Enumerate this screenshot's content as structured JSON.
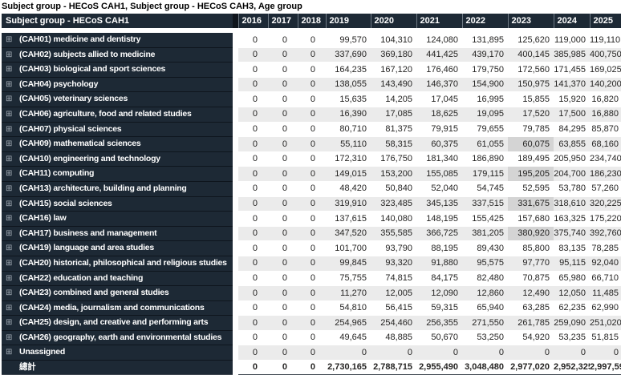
{
  "title": "Subject group - HECoS CAH1, Subject group - HECoS CAH3, Age group",
  "icons": {
    "expand": "⊞"
  },
  "colors": {
    "header_bg": "#1d2935",
    "stripe": "#ebebeb",
    "highlight": "#d4d4d4"
  },
  "table": {
    "row_header_label": "Subject group - HECoS CAH1",
    "years": [
      "2016",
      "2017",
      "2018",
      "2019",
      "2020",
      "2021",
      "2022",
      "2023",
      "2024",
      "2025"
    ],
    "rows": [
      {
        "label": "(CAH01) medicine and dentistry",
        "expandable": true,
        "total": false,
        "values": [
          "0",
          "0",
          "0",
          "99,570",
          "104,310",
          "124,080",
          "131,895",
          "125,620",
          "119,000",
          "119,110"
        ]
      },
      {
        "label": "(CAH02) subjects allied to medicine",
        "expandable": true,
        "total": false,
        "values": [
          "0",
          "0",
          "0",
          "337,690",
          "369,180",
          "441,425",
          "439,170",
          "400,145",
          "385,985",
          "400,750"
        ]
      },
      {
        "label": "(CAH03) biological and sport sciences",
        "expandable": true,
        "total": false,
        "values": [
          "0",
          "0",
          "0",
          "164,235",
          "167,120",
          "176,460",
          "179,750",
          "172,560",
          "171,455",
          "169,025"
        ]
      },
      {
        "label": "(CAH04) psychology",
        "expandable": true,
        "total": false,
        "values": [
          "0",
          "0",
          "0",
          "138,055",
          "143,490",
          "146,370",
          "154,900",
          "150,975",
          "141,370",
          "140,200"
        ]
      },
      {
        "label": "(CAH05) veterinary sciences",
        "expandable": true,
        "total": false,
        "values": [
          "0",
          "0",
          "0",
          "15,635",
          "14,205",
          "17,045",
          "16,995",
          "15,855",
          "15,920",
          "16,820"
        ]
      },
      {
        "label": "(CAH06) agriculture, food and related studies",
        "expandable": true,
        "total": false,
        "values": [
          "0",
          "0",
          "0",
          "16,390",
          "17,085",
          "18,625",
          "19,095",
          "17,520",
          "17,500",
          "16,880"
        ]
      },
      {
        "label": "(CAH07) physical sciences",
        "expandable": true,
        "total": false,
        "values": [
          "0",
          "0",
          "0",
          "80,710",
          "81,375",
          "79,915",
          "79,655",
          "79,785",
          "84,295",
          "85,870"
        ]
      },
      {
        "label": "(CAH09) mathematical sciences",
        "expandable": true,
        "total": false,
        "values": [
          "0",
          "0",
          "0",
          "55,110",
          "58,315",
          "60,375",
          "61,055",
          "60,075",
          "63,855",
          "68,160"
        ]
      },
      {
        "label": "(CAH10) engineering and technology",
        "expandable": true,
        "total": false,
        "values": [
          "0",
          "0",
          "0",
          "172,310",
          "176,750",
          "181,340",
          "186,890",
          "189,495",
          "205,950",
          "234,740"
        ]
      },
      {
        "label": "(CAH11) computing",
        "expandable": true,
        "total": false,
        "values": [
          "0",
          "0",
          "0",
          "149,015",
          "153,200",
          "155,085",
          "179,115",
          "195,205",
          "204,700",
          "186,230"
        ]
      },
      {
        "label": "(CAH13) architecture, building and planning",
        "expandable": true,
        "total": false,
        "values": [
          "0",
          "0",
          "0",
          "48,420",
          "50,840",
          "52,040",
          "54,745",
          "52,595",
          "53,780",
          "57,260"
        ]
      },
      {
        "label": "(CAH15) social sciences",
        "expandable": true,
        "total": false,
        "values": [
          "0",
          "0",
          "0",
          "319,910",
          "323,485",
          "345,135",
          "337,515",
          "331,675",
          "318,610",
          "320,225"
        ]
      },
      {
        "label": "(CAH16) law",
        "expandable": true,
        "total": false,
        "values": [
          "0",
          "0",
          "0",
          "137,615",
          "140,080",
          "148,195",
          "155,425",
          "157,680",
          "163,325",
          "175,220"
        ]
      },
      {
        "label": "(CAH17) business and management",
        "expandable": true,
        "total": false,
        "values": [
          "0",
          "0",
          "0",
          "347,520",
          "355,585",
          "366,725",
          "381,205",
          "380,920",
          "375,740",
          "392,760"
        ]
      },
      {
        "label": "(CAH19) language and area studies",
        "expandable": true,
        "total": false,
        "values": [
          "0",
          "0",
          "0",
          "101,700",
          "93,790",
          "88,195",
          "89,430",
          "85,800",
          "83,135",
          "78,285"
        ]
      },
      {
        "label": "(CAH20) historical, philosophical and religious studies",
        "expandable": true,
        "total": false,
        "values": [
          "0",
          "0",
          "0",
          "99,845",
          "93,320",
          "91,880",
          "95,575",
          "97,770",
          "95,115",
          "92,040"
        ]
      },
      {
        "label": "(CAH22) education and teaching",
        "expandable": true,
        "total": false,
        "values": [
          "0",
          "0",
          "0",
          "75,755",
          "74,815",
          "84,175",
          "82,480",
          "70,875",
          "65,980",
          "66,710"
        ]
      },
      {
        "label": "(CAH23) combined and general studies",
        "expandable": true,
        "total": false,
        "values": [
          "0",
          "0",
          "0",
          "11,270",
          "12,005",
          "12,090",
          "12,860",
          "12,490",
          "12,050",
          "11,485"
        ]
      },
      {
        "label": "(CAH24) media, journalism and communications",
        "expandable": true,
        "total": false,
        "values": [
          "0",
          "0",
          "0",
          "54,810",
          "56,415",
          "59,315",
          "65,940",
          "63,285",
          "62,235",
          "62,990"
        ]
      },
      {
        "label": "(CAH25) design, and creative and performing arts",
        "expandable": true,
        "total": false,
        "values": [
          "0",
          "0",
          "0",
          "254,965",
          "254,460",
          "256,355",
          "271,550",
          "261,785",
          "259,090",
          "251,020"
        ]
      },
      {
        "label": "(CAH26) geography, earth and environmental studies",
        "expandable": true,
        "total": false,
        "values": [
          "0",
          "0",
          "0",
          "49,645",
          "48,885",
          "50,670",
          "53,250",
          "54,920",
          "53,235",
          "51,815"
        ]
      },
      {
        "label": "Unassigned",
        "expandable": true,
        "total": false,
        "values": [
          "0",
          "0",
          "0",
          "0",
          "0",
          "0",
          "0",
          "0",
          "0",
          "0"
        ]
      },
      {
        "label": "總計",
        "expandable": false,
        "total": true,
        "values": [
          "0",
          "0",
          "0",
          "2,730,165",
          "2,788,715",
          "2,955,490",
          "3,048,480",
          "2,977,020",
          "2,952,325",
          "2,997,590"
        ]
      }
    ],
    "highlighted_cells": [
      {
        "row_label": "(CAH09) mathematical sciences",
        "year": "2023"
      },
      {
        "row_label": "(CAH11) computing",
        "year": "2023"
      },
      {
        "row_label": "(CAH15) social sciences",
        "year": "2023"
      },
      {
        "row_label": "(CAH17) business and management",
        "year": "2023"
      }
    ]
  }
}
